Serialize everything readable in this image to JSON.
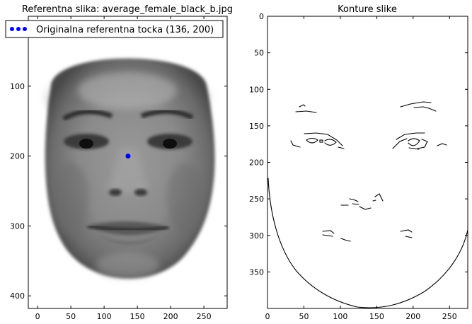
{
  "chart_data": [
    {
      "type": "image",
      "title": "Referentna slika: average_female_black_b.jpg",
      "xlim": [
        -14,
        285
      ],
      "ylim": [
        418,
        0
      ],
      "xticks": [
        0,
        50,
        100,
        150,
        200,
        250
      ],
      "yticks": [
        100,
        200,
        300,
        400
      ],
      "image_extent": {
        "x": [
          0,
          275
        ],
        "y": [
          0,
          418
        ]
      },
      "legend": {
        "placement": "top-left",
        "entries": [
          "Originalna referentna tocka (136, 200)"
        ]
      },
      "points": [
        {
          "x": 136,
          "y": 200,
          "color": "#0000ff",
          "label": "Originalna referentna tocka (136, 200)"
        }
      ],
      "cmap": "gray"
    },
    {
      "type": "image",
      "title": "Konture slike",
      "xlim": [
        0,
        275
      ],
      "ylim": [
        400,
        0
      ],
      "xticks": [
        0,
        50,
        100,
        150,
        200,
        250
      ],
      "yticks": [
        0,
        50,
        100,
        150,
        200,
        250,
        300,
        350
      ],
      "cmap": "gray_r"
    }
  ]
}
